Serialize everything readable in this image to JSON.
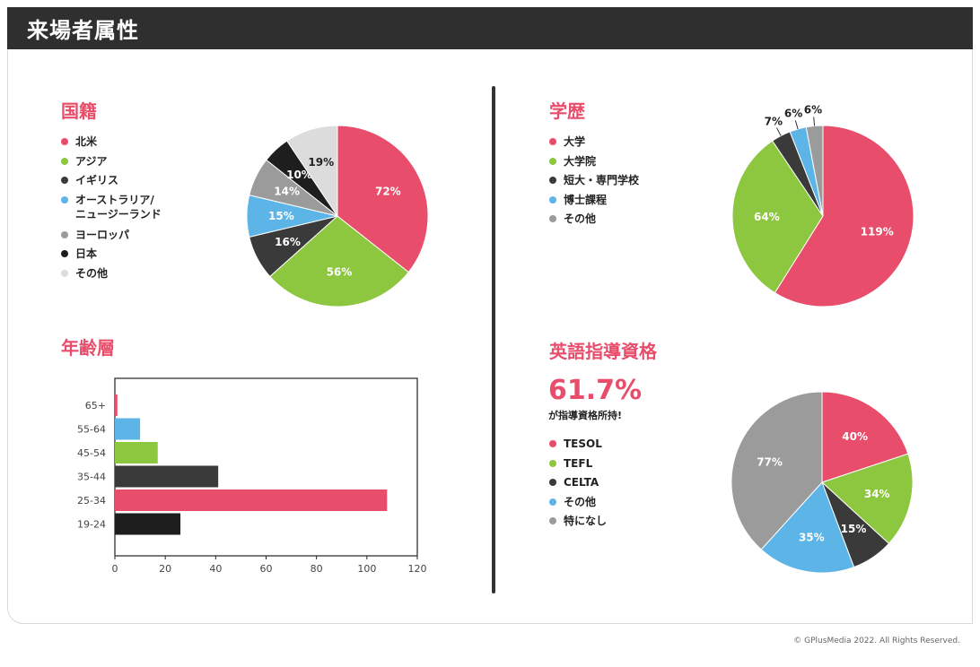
{
  "header": {
    "title": "来場者属性"
  },
  "footer": {
    "copyright": "© GPlusMedia 2022. All Rights Reserved."
  },
  "colors": {
    "pink": "#e84d6b",
    "green": "#8dc63f",
    "dark": "#3a3a3a",
    "blue": "#5db4e6",
    "gray": "#9b9b9b",
    "black": "#1e1e1e",
    "light": "#dcdcdc"
  },
  "nationality": {
    "title": "国籍",
    "legend": [
      {
        "label": "北米",
        "color": "#e84d6b"
      },
      {
        "label": "アジア",
        "color": "#8dc63f"
      },
      {
        "label": "イギリス",
        "color": "#3a3a3a"
      },
      {
        "label": "オーストラリア/",
        "label2": "ニュージーランド",
        "color": "#5db4e6"
      },
      {
        "label": "ヨーロッパ",
        "color": "#9b9b9b"
      },
      {
        "label": "日本",
        "color": "#1e1e1e"
      },
      {
        "label": "その他",
        "color": "#dcdcdc"
      }
    ]
  },
  "education": {
    "title": "学歴",
    "legend": [
      {
        "label": "大学",
        "color": "#e84d6b"
      },
      {
        "label": "大学院",
        "color": "#8dc63f"
      },
      {
        "label": "短大・専門学校",
        "color": "#3a3a3a"
      },
      {
        "label": "博士課程",
        "color": "#5db4e6"
      },
      {
        "label": "その他",
        "color": "#9b9b9b"
      }
    ]
  },
  "age": {
    "title": "年齢層"
  },
  "qualification": {
    "title": "英語指導資格",
    "stat": "61.7%",
    "stat_label": "が指導資格所持!",
    "legend": [
      {
        "label": "TESOL",
        "color": "#e84d6b"
      },
      {
        "label": "TEFL",
        "color": "#8dc63f"
      },
      {
        "label": "CELTA",
        "color": "#3a3a3a"
      },
      {
        "label": "その他",
        "color": "#5db4e6"
      },
      {
        "label": "特になし",
        "color": "#9b9b9b"
      }
    ]
  },
  "chart_data": [
    {
      "type": "pie",
      "title": "国籍",
      "categories": [
        "北米",
        "アジア",
        "イギリス",
        "オーストラリア/ニュージーランド",
        "ヨーロッパ",
        "日本",
        "その他"
      ],
      "values": [
        72,
        56,
        16,
        15,
        14,
        10,
        19
      ],
      "labels": [
        "72%",
        "56%",
        "16%",
        "15%",
        "14%",
        "10%",
        "19%"
      ],
      "colors": [
        "#e84d6b",
        "#8dc63f",
        "#3a3a3a",
        "#5db4e6",
        "#9b9b9b",
        "#1e1e1e",
        "#dcdcdc"
      ],
      "label_colors": [
        "#ffffff",
        "#ffffff",
        "#ffffff",
        "#ffffff",
        "#ffffff",
        "#ffffff",
        "#222222"
      ],
      "legend": "left"
    },
    {
      "type": "pie",
      "title": "学歴",
      "categories": [
        "大学",
        "大学院",
        "短大・専門学校",
        "博士課程",
        "その他"
      ],
      "values": [
        119,
        64,
        7,
        6,
        6
      ],
      "labels": [
        "119%",
        "64%",
        "7%",
        "6%",
        "6%"
      ],
      "colors": [
        "#e84d6b",
        "#8dc63f",
        "#3a3a3a",
        "#5db4e6",
        "#9b9b9b"
      ],
      "label_colors": [
        "#ffffff",
        "#ffffff",
        "#222222",
        "#222222",
        "#222222"
      ],
      "outside_labels": [
        false,
        false,
        true,
        true,
        true
      ],
      "legend": "left"
    },
    {
      "type": "bar",
      "orientation": "horizontal",
      "title": "年齢層",
      "categories": [
        "65+",
        "55-64",
        "45-54",
        "35-44",
        "25-34",
        "19-24"
      ],
      "values": [
        1,
        10,
        17,
        41,
        108,
        26
      ],
      "colors": [
        "#e84d6b",
        "#5db4e6",
        "#8dc63f",
        "#3a3a3a",
        "#e84d6b",
        "#1e1e1e"
      ],
      "xlim": [
        0,
        120
      ],
      "xticks": [
        0,
        20,
        40,
        60,
        80,
        100,
        120
      ],
      "grid": false
    },
    {
      "type": "pie",
      "title": "英語指導資格",
      "categories": [
        "TESOL",
        "TEFL",
        "CELTA",
        "その他",
        "特になし"
      ],
      "values": [
        40,
        34,
        15,
        35,
        77
      ],
      "labels": [
        "40%",
        "34%",
        "15%",
        "35%",
        "77%"
      ],
      "colors": [
        "#e84d6b",
        "#8dc63f",
        "#3a3a3a",
        "#5db4e6",
        "#9b9b9b"
      ],
      "label_colors": [
        "#ffffff",
        "#ffffff",
        "#ffffff",
        "#ffffff",
        "#ffffff"
      ],
      "legend": "left"
    }
  ]
}
